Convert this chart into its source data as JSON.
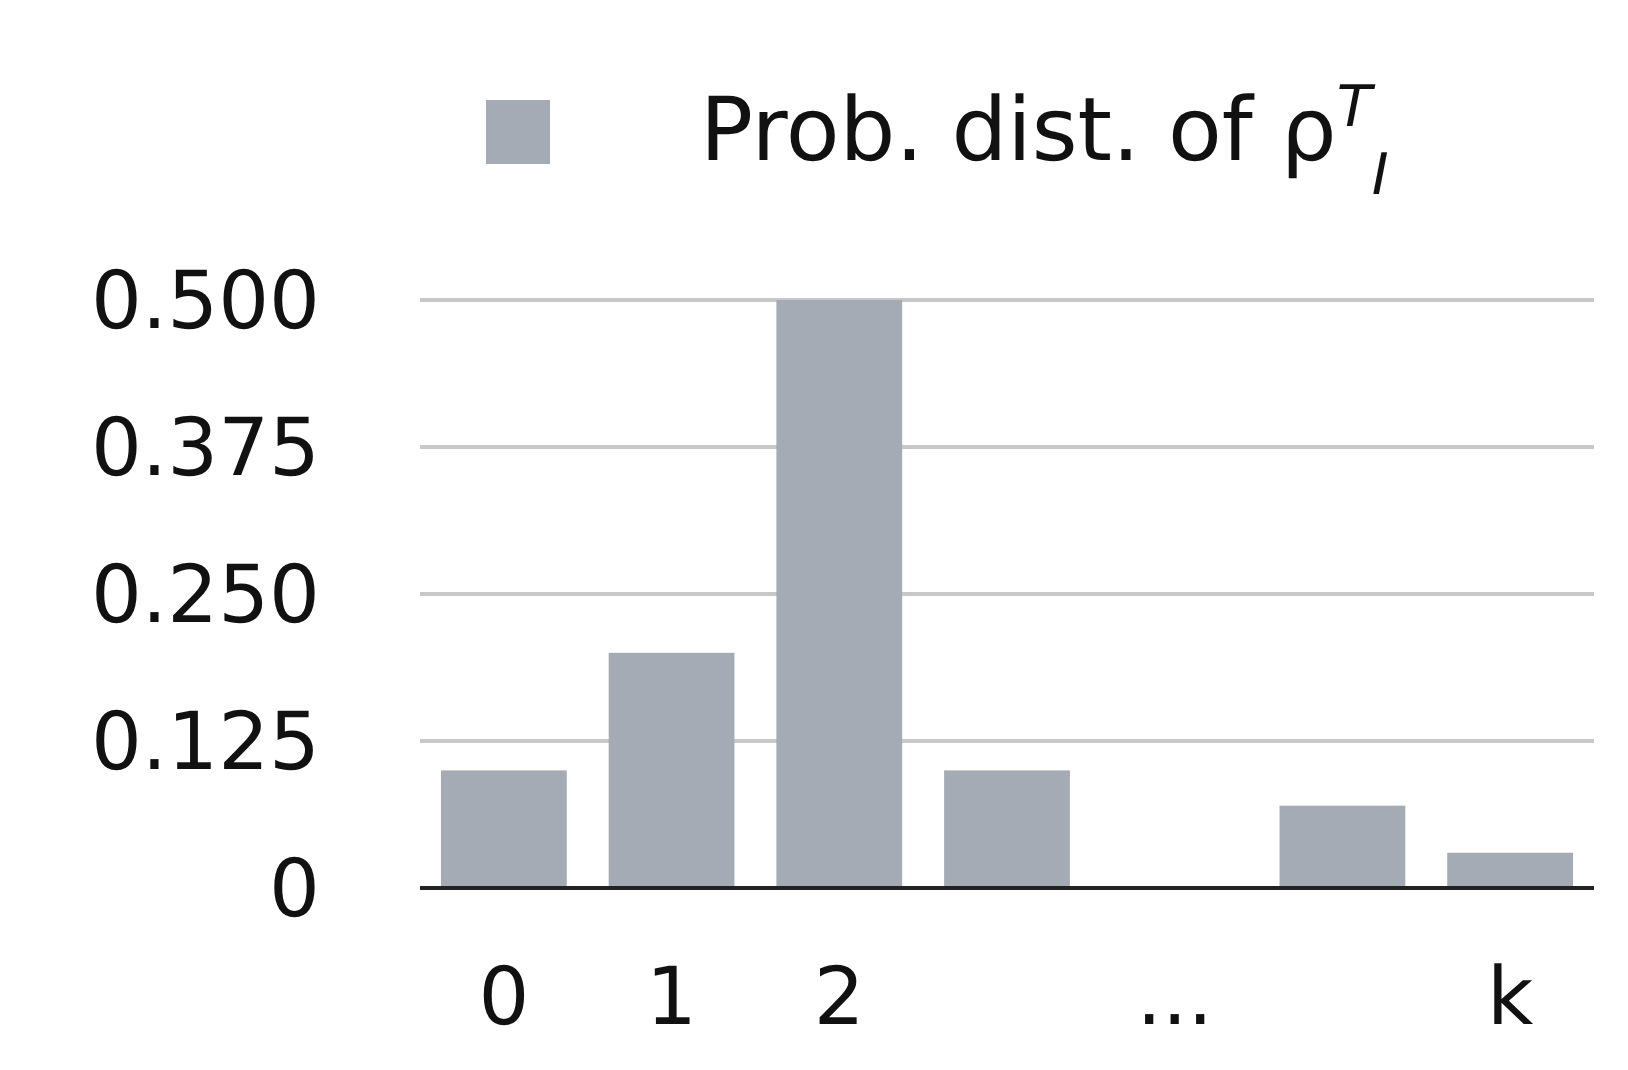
{
  "chart_data": {
    "type": "bar",
    "categories": [
      "0",
      "1",
      "2",
      null,
      "...",
      null,
      "k"
    ],
    "series": [
      {
        "name": "Prob. dist. of ρ$^{T}$$_{I}$",
        "color": "#a4abb4",
        "values": [
          0.1,
          0.2,
          0.5,
          0.1,
          null,
          0.07,
          0.03
        ]
      }
    ],
    "ylim": [
      0,
      0.5
    ],
    "yticks": [
      0,
      0.125,
      {
        "value": 0.25,
        "label": "0.250"
      },
      0.375,
      {
        "value": 0.5,
        "label": "0.500"
      }
    ],
    "grid": "y",
    "legend": "top"
  }
}
